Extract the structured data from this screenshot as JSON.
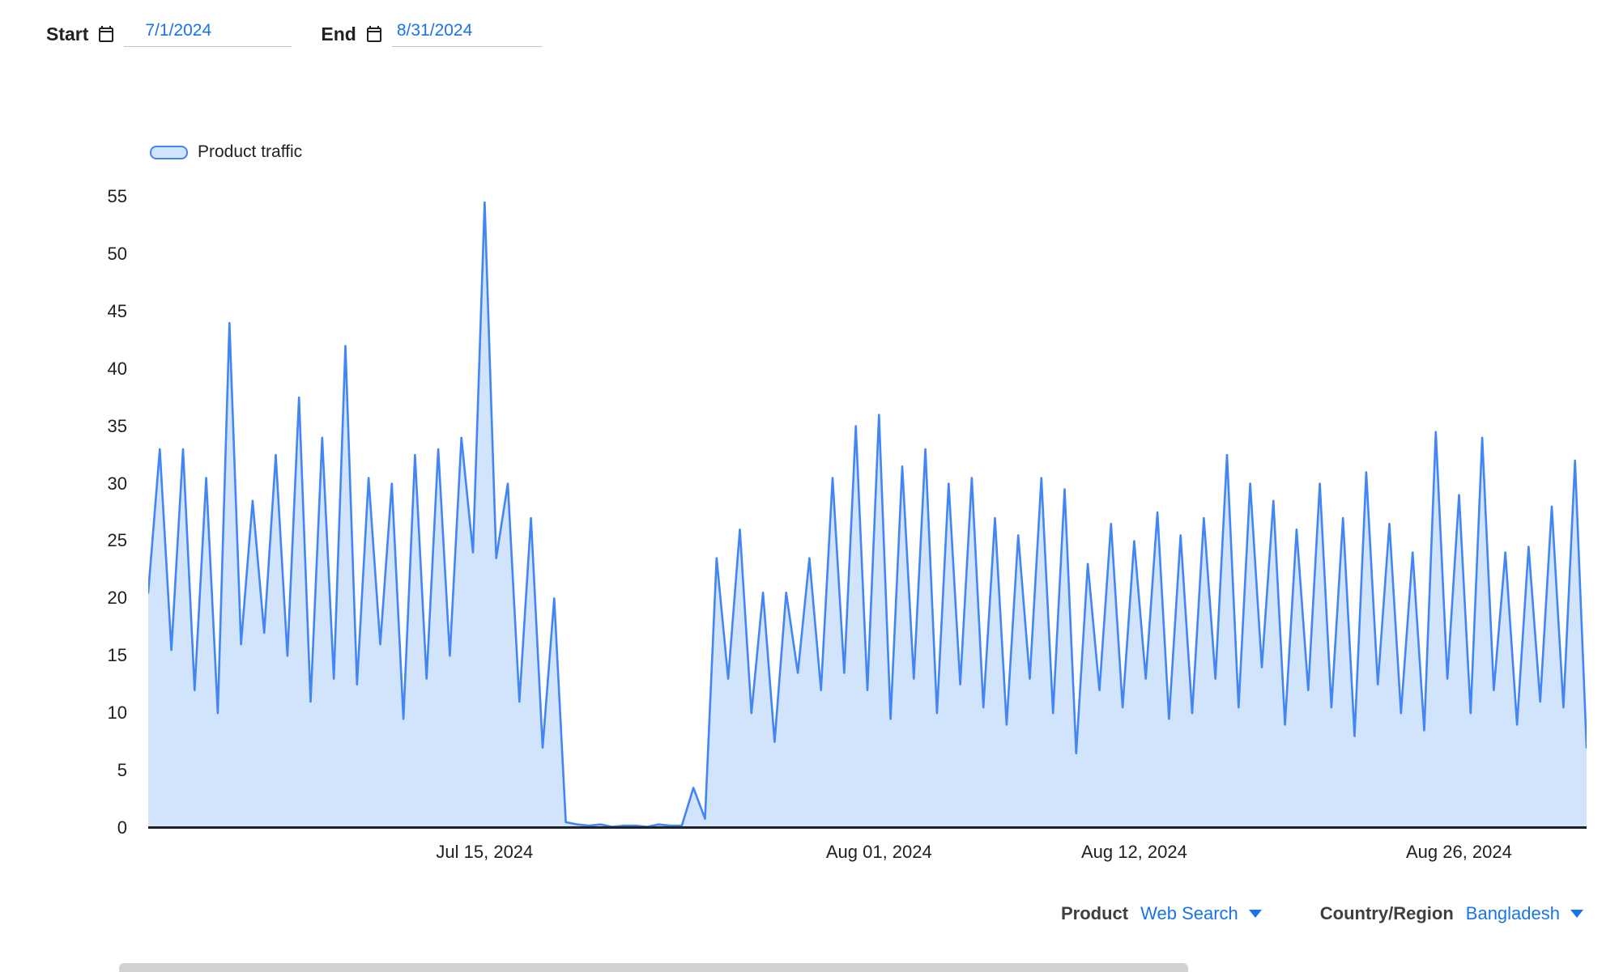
{
  "date_controls": {
    "start_label": "Start",
    "start_value": "7/1/2024",
    "end_label": "End",
    "end_value": "8/31/2024"
  },
  "legend": {
    "label": "Product traffic"
  },
  "filters": {
    "product_label": "Product",
    "product_value": "Web Search",
    "country_label": "Country/Region",
    "country_value": "Bangladesh"
  },
  "colors": {
    "line": "#4285f4",
    "fill": "#d2e3fc",
    "link": "#1a73e8",
    "axis": "#202124"
  },
  "chart_data": {
    "type": "area",
    "title": "Product traffic",
    "x_start": "7/1/2024",
    "x_end": "8/31/2024",
    "points_per_day": 2,
    "ylim": [
      0,
      55
    ],
    "grid": false,
    "legend_position": "top-left",
    "y_ticks": [
      0,
      5,
      10,
      15,
      20,
      25,
      30,
      35,
      40,
      45,
      50,
      55
    ],
    "x_ticks": [
      {
        "label": "Jul 15, 2024",
        "index": 29
      },
      {
        "label": "Aug 01, 2024",
        "index": 63
      },
      {
        "label": "Aug 12, 2024",
        "index": 85
      },
      {
        "label": "Aug 26, 2024",
        "index": 113
      }
    ],
    "series": [
      {
        "name": "Product traffic",
        "values": [
          20.5,
          33,
          15.5,
          33,
          12,
          30.5,
          10,
          44,
          16,
          28.5,
          17,
          32.5,
          15,
          37.5,
          11,
          34,
          13,
          42,
          12.5,
          30.5,
          16,
          30,
          9.5,
          32.5,
          13,
          33,
          15,
          34,
          24,
          54.5,
          23.5,
          30,
          11,
          27,
          7,
          20,
          0.5,
          0.3,
          0.2,
          0.3,
          0.1,
          0.2,
          0.2,
          0.1,
          0.3,
          0.2,
          0.2,
          3.5,
          0.8,
          23.5,
          13,
          26,
          10,
          20.5,
          7.5,
          20.5,
          13.5,
          23.5,
          12,
          30.5,
          13.5,
          35,
          12,
          36,
          9.5,
          31.5,
          13,
          33,
          10,
          30,
          12.5,
          30.5,
          10.5,
          27,
          9,
          25.5,
          13,
          30.5,
          10,
          29.5,
          6.5,
          23,
          12,
          26.5,
          10.5,
          25,
          13,
          27.5,
          9.5,
          25.5,
          10,
          27,
          13,
          32.5,
          10.5,
          30,
          14,
          28.5,
          9,
          26,
          12,
          30,
          10.5,
          27,
          8,
          31,
          12.5,
          26.5,
          10,
          24,
          8.5,
          34.5,
          13,
          29,
          10,
          34,
          12,
          24,
          9,
          24.5,
          11,
          28,
          10.5,
          32,
          7
        ]
      }
    ]
  }
}
